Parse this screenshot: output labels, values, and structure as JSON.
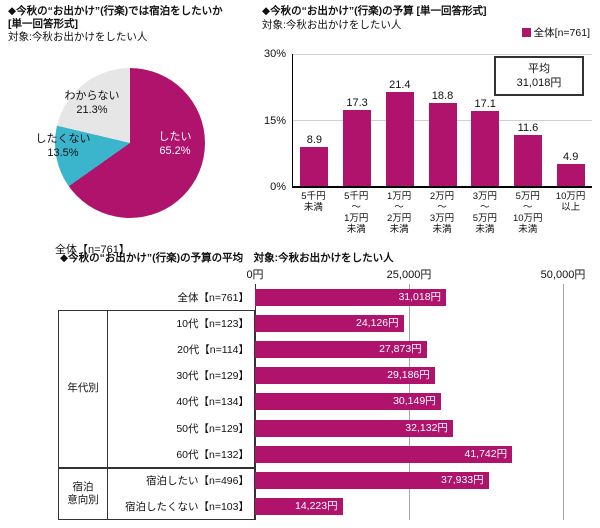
{
  "colors": {
    "accent": "#b0136b",
    "cyan": "#3ab5cc",
    "gray": "#e6e6e6"
  },
  "pie_section": {
    "title_line1": "◆今秋の“お出かけ”(行楽)では宿泊をしたいか",
    "title_line2": "[単一回答形式]",
    "target": "対象:今秋お出かけをしたい人",
    "footer": "全体【n=761】"
  },
  "budget_section": {
    "title": "◆今秋の“お出かけ”(行楽)の予算 [単一回答形式]",
    "target": "対象:今秋お出かけをしたい人",
    "legend_label": "全体[n=761]",
    "average_label": "平均",
    "average_value": "31,018円"
  },
  "average_section": {
    "title": "◆今秋の“お出かけ”(行楽)の予算の平均　対象:今秋お出かけをしたい人",
    "axis_ticks": [
      "0円",
      "25,000円",
      "50,000円"
    ],
    "group_age": "年代別",
    "group_stay_line1": "宿泊",
    "group_stay_line2": "意向別"
  },
  "chart_data": [
    {
      "type": "pie",
      "title": "今秋の“お出かけ”(行楽)では宿泊をしたいか",
      "n_label": "全体【n=761】",
      "slices": [
        {
          "label": "したい",
          "value": 65.2,
          "pct_text": "65.2%",
          "color": "#b0136b"
        },
        {
          "label": "したくない",
          "value": 13.5,
          "pct_text": "13.5%",
          "color": "#3ab5cc"
        },
        {
          "label": "わからない",
          "value": 21.3,
          "pct_text": "21.3%",
          "color": "#e6e6e6"
        }
      ]
    },
    {
      "type": "bar",
      "title": "今秋の“お出かけ”(行楽)の予算",
      "legend": "全体[n=761]",
      "categories": [
        "5千円未満",
        "5千円～1万円未満",
        "1万円～2万円未満",
        "2万円～3万円未満",
        "3万円～5万円未満",
        "5万円～10万円未満",
        "10万円以上"
      ],
      "category_lines": [
        [
          "5千円",
          "未満"
        ],
        [
          "5千円",
          "～",
          "1万円",
          "未満"
        ],
        [
          "1万円",
          "～",
          "2万円",
          "未満"
        ],
        [
          "2万円",
          "～",
          "3万円",
          "未満"
        ],
        [
          "3万円",
          "～",
          "5万円",
          "未満"
        ],
        [
          "5万円",
          "～",
          "10万円",
          "未満"
        ],
        [
          "10万円",
          "以上"
        ]
      ],
      "values": [
        8.9,
        17.3,
        21.4,
        18.8,
        17.1,
        11.6,
        4.9
      ],
      "value_labels": [
        "8.9",
        "17.3",
        "21.4",
        "18.8",
        "17.1",
        "11.6",
        "4.9"
      ],
      "ylabel": "%",
      "ylim": [
        0,
        30
      ],
      "yticks": [
        "30%",
        "15%",
        "0%"
      ],
      "average": "31,018円"
    },
    {
      "type": "bar",
      "orientation": "horizontal",
      "title": "今秋の“お出かけ”(行楽)の予算の平均",
      "categories": [
        "全体【n=761】",
        "10代【n=123】",
        "20代【n=114】",
        "30代【n=129】",
        "40代【n=134】",
        "50代【n=129】",
        "60代【n=132】",
        "宿泊したい【n=496】",
        "宿泊したくない【n=103】"
      ],
      "values": [
        31018,
        24126,
        27873,
        29186,
        30149,
        32132,
        41742,
        37933,
        14223
      ],
      "value_labels": [
        "31,018円",
        "24,126円",
        "27,873円",
        "29,186円",
        "30,149円",
        "32,132円",
        "41,742円",
        "37,933円",
        "14,223円"
      ],
      "xlim": [
        0,
        50000
      ],
      "xticks": [
        "0円",
        "25,000円",
        "50,000円"
      ],
      "groups": [
        {
          "label": "年代別",
          "rows": [
            1,
            6
          ]
        },
        {
          "label": "宿泊意向別",
          "rows": [
            7,
            8
          ]
        }
      ]
    }
  ]
}
